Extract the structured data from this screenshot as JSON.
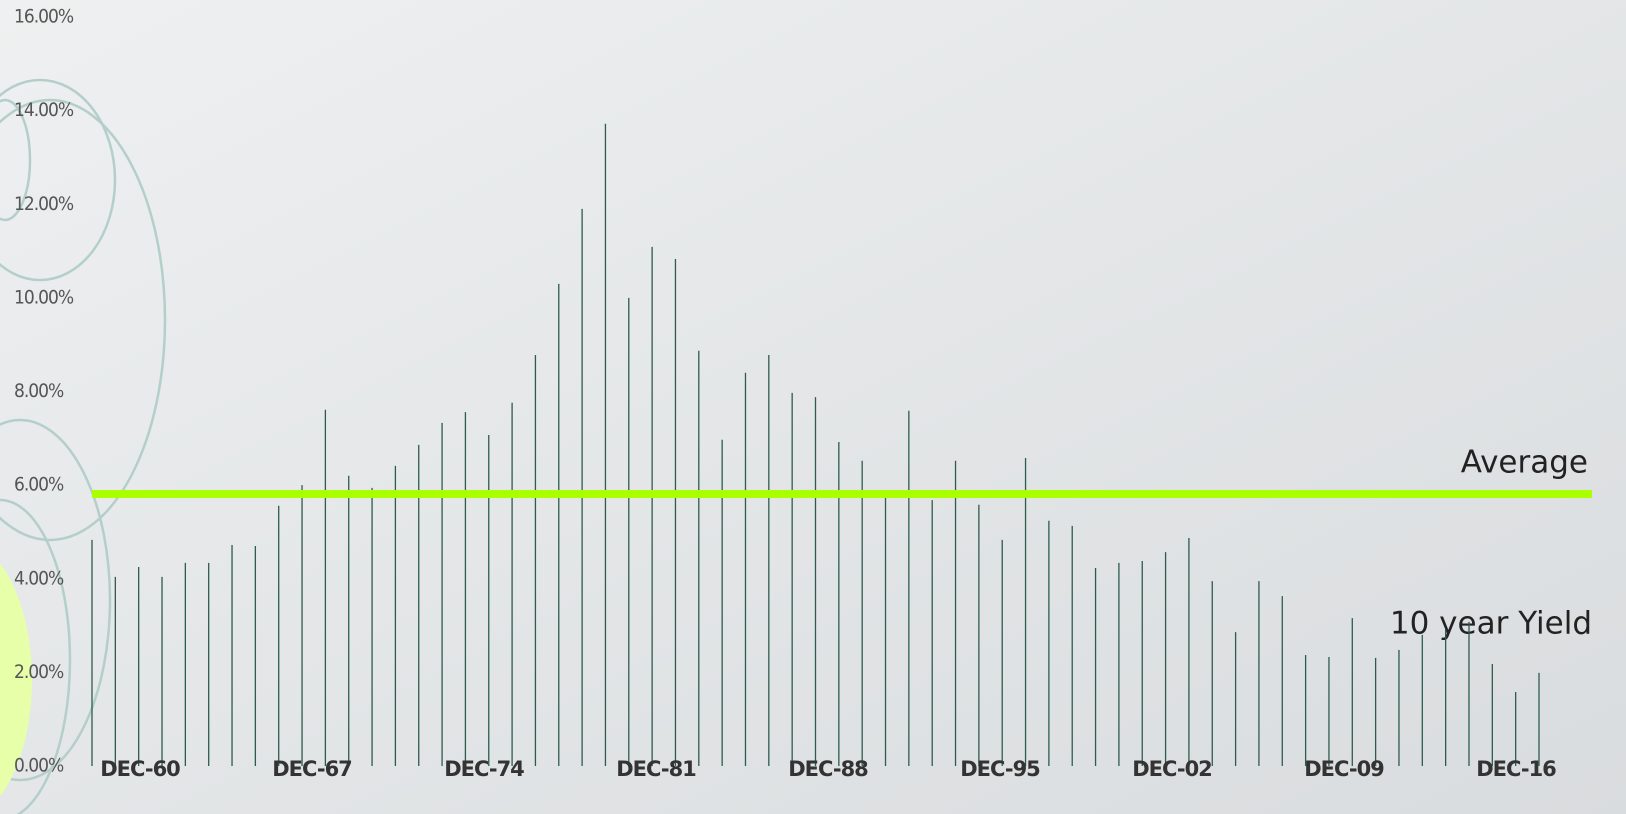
{
  "chart_data": {
    "type": "bar",
    "values": [
      4.83,
      4.04,
      4.25,
      4.04,
      4.34,
      4.34,
      4.72,
      4.7,
      5.56,
      6.0,
      7.61,
      6.2,
      5.94,
      6.41,
      6.86,
      7.33,
      7.56,
      7.07,
      7.76,
      8.78,
      10.3,
      11.9,
      13.72,
      10.0,
      11.09,
      10.83,
      8.87,
      6.97,
      8.4,
      8.78,
      7.97,
      7.88,
      6.92,
      6.52,
      5.77,
      7.59,
      5.68,
      6.52,
      5.58,
      4.83,
      6.58,
      5.24,
      5.13,
      4.23,
      4.34,
      4.38,
      4.57,
      4.87,
      3.95,
      2.86,
      3.95,
      3.63,
      2.37,
      2.33,
      3.16,
      2.31,
      2.48,
      2.8,
      2.93,
      3.08,
      2.18,
      1.58,
      1.99
    ],
    "color": "#2e5b4c",
    "xtick_labels": [
      "DEC-60",
      "DEC-67",
      "DEC-74",
      "DEC-81",
      "DEC-88",
      "DEC-95",
      "DEC-02",
      "DEC-09",
      "DEC-16"
    ],
    "ylim": [
      0,
      16
    ],
    "yticks": [
      {
        "value": 0,
        "label": "0.00%"
      },
      {
        "value": 2,
        "label": "2.00%"
      },
      {
        "value": 4,
        "label": "4.00%"
      },
      {
        "value": 6,
        "label": "6.00%"
      },
      {
        "value": 8,
        "label": "8.00%"
      },
      {
        "value": 10,
        "label": "10.00%"
      },
      {
        "value": 12,
        "label": "12.00%"
      },
      {
        "value": 14,
        "label": "14.00%"
      },
      {
        "value": 16,
        "label": "16.00%"
      }
    ],
    "average": {
      "label": "Average",
      "value": 5.81,
      "color": "#aaff00"
    },
    "series_label": "10 year Yield"
  }
}
